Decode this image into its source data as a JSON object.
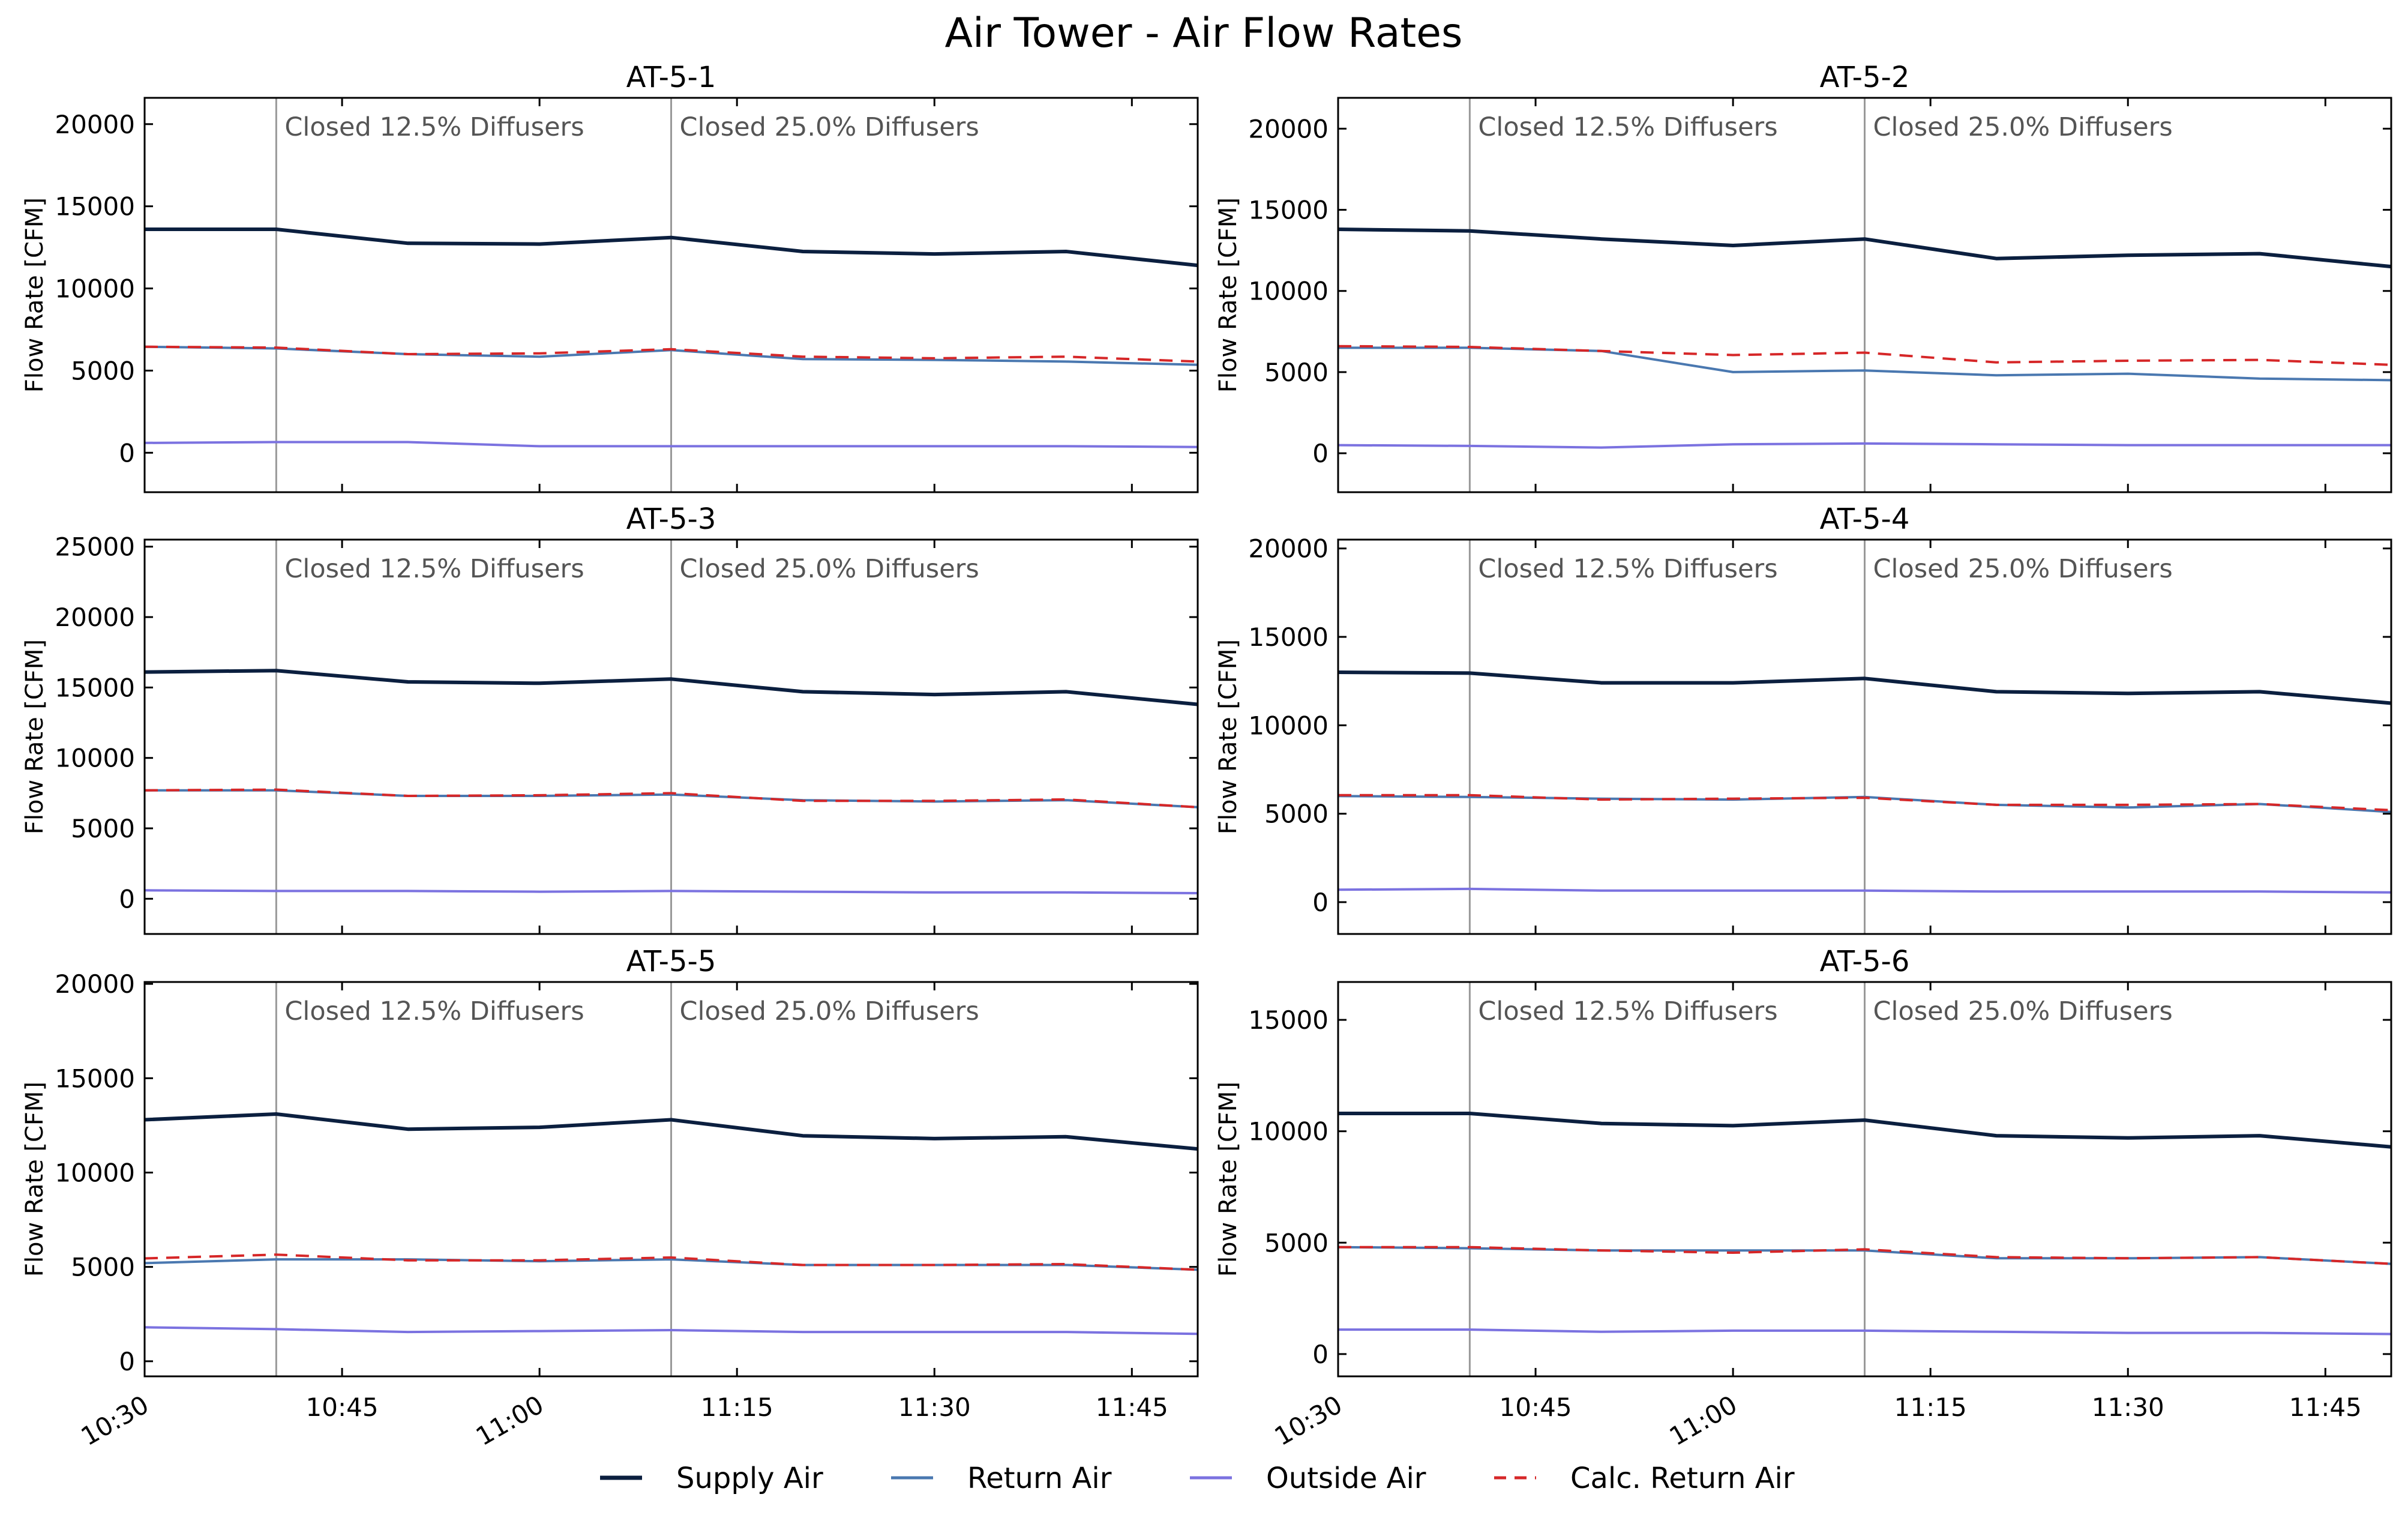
{
  "figure": {
    "title": "Air Tower - Air Flow Rates"
  },
  "colors": {
    "supply": "#0b1f3f",
    "return": "#4a78b0",
    "outside": "#7b72e0",
    "calc_return": "#d62728",
    "event_line": "#999999",
    "event_text": "#555555"
  },
  "legend": {
    "placement": "bottom-center",
    "items": [
      {
        "key": "supply",
        "label": "Supply Air",
        "dash": false
      },
      {
        "key": "return",
        "label": "Return Air",
        "dash": false
      },
      {
        "key": "outside",
        "label": "Outside Air",
        "dash": false
      },
      {
        "key": "calc_return",
        "label": "Calc. Return Air",
        "dash": true
      }
    ]
  },
  "chart_data": [
    {
      "type": "line",
      "title": "AT-5-1",
      "ylabel": "Flow Rate [CFM]",
      "xlabel": "",
      "x": [
        "10:30",
        "10:40",
        "10:50",
        "11:00",
        "11:10",
        "11:20",
        "11:30",
        "11:40",
        "11:50"
      ],
      "xlim": [
        "10:30",
        "11:50"
      ],
      "ylim": [
        -2400,
        21600
      ],
      "yticks": [
        0,
        5000,
        10000,
        15000,
        20000
      ],
      "grid": false,
      "events": [
        {
          "x": "10:40",
          "label": "Closed 12.5% Diffusers"
        },
        {
          "x": "11:10",
          "label": "Closed 25.0% Diffusers"
        }
      ],
      "series": [
        {
          "name": "Supply Air",
          "key": "supply",
          "values": [
            13600,
            13600,
            12750,
            12700,
            13100,
            12250,
            12100,
            12250,
            11400
          ]
        },
        {
          "name": "Return Air",
          "key": "return",
          "values": [
            6450,
            6350,
            6000,
            5850,
            6250,
            5700,
            5650,
            5550,
            5350
          ]
        },
        {
          "name": "Outside Air",
          "key": "outside",
          "values": [
            600,
            650,
            650,
            400,
            400,
            400,
            400,
            400,
            350
          ]
        },
        {
          "name": "Calc. Return Air",
          "key": "calc_return",
          "values": [
            6450,
            6400,
            6000,
            6050,
            6300,
            5850,
            5750,
            5850,
            5550
          ]
        }
      ]
    },
    {
      "type": "line",
      "title": "AT-5-2",
      "ylabel": "Flow Rate [CFM]",
      "xlabel": "",
      "x": [
        "10:30",
        "10:40",
        "10:50",
        "11:00",
        "11:10",
        "11:20",
        "11:30",
        "11:40",
        "11:50"
      ],
      "xlim": [
        "10:30",
        "11:50"
      ],
      "ylim": [
        -2400,
        21900
      ],
      "yticks": [
        0,
        5000,
        10000,
        15000,
        20000
      ],
      "grid": false,
      "events": [
        {
          "x": "10:40",
          "label": "Closed 12.5% Diffusers"
        },
        {
          "x": "11:10",
          "label": "Closed 25.0% Diffusers"
        }
      ],
      "series": [
        {
          "name": "Supply Air",
          "key": "supply",
          "values": [
            13800,
            13700,
            13200,
            12800,
            13200,
            12000,
            12200,
            12300,
            11500
          ]
        },
        {
          "name": "Return Air",
          "key": "return",
          "values": [
            6500,
            6500,
            6300,
            5000,
            5100,
            4800,
            4900,
            4600,
            4500
          ]
        },
        {
          "name": "Outside Air",
          "key": "outside",
          "values": [
            500,
            450,
            350,
            550,
            600,
            550,
            500,
            500,
            500
          ]
        },
        {
          "name": "Calc. Return Air",
          "key": "calc_return",
          "values": [
            6600,
            6550,
            6300,
            6050,
            6200,
            5600,
            5700,
            5750,
            5450
          ]
        }
      ]
    },
    {
      "type": "line",
      "title": "AT-5-3",
      "ylabel": "Flow Rate [CFM]",
      "xlabel": "",
      "x": [
        "10:30",
        "10:40",
        "10:50",
        "11:00",
        "11:10",
        "11:20",
        "11:30",
        "11:40",
        "11:50"
      ],
      "xlim": [
        "10:30",
        "11:50"
      ],
      "ylim": [
        -2500,
        25500
      ],
      "yticks": [
        0,
        5000,
        10000,
        15000,
        20000,
        25000
      ],
      "grid": false,
      "events": [
        {
          "x": "10:40",
          "label": "Closed 12.5% Diffusers"
        },
        {
          "x": "11:10",
          "label": "Closed 25.0% Diffusers"
        }
      ],
      "series": [
        {
          "name": "Supply Air",
          "key": "supply",
          "values": [
            16100,
            16200,
            15400,
            15300,
            15600,
            14700,
            14500,
            14700,
            13800
          ]
        },
        {
          "name": "Return Air",
          "key": "return",
          "values": [
            7700,
            7700,
            7300,
            7300,
            7400,
            7000,
            6900,
            7000,
            6500
          ]
        },
        {
          "name": "Outside Air",
          "key": "outside",
          "values": [
            600,
            550,
            550,
            500,
            550,
            500,
            450,
            450,
            400
          ]
        },
        {
          "name": "Calc. Return Air",
          "key": "calc_return",
          "values": [
            7700,
            7750,
            7300,
            7350,
            7500,
            6950,
            6950,
            7050,
            6500
          ]
        }
      ]
    },
    {
      "type": "line",
      "title": "AT-5-4",
      "ylabel": "Flow Rate [CFM]",
      "xlabel": "",
      "x": [
        "10:30",
        "10:40",
        "10:50",
        "11:00",
        "11:10",
        "11:20",
        "11:30",
        "11:40",
        "11:50"
      ],
      "xlim": [
        "10:30",
        "11:50"
      ],
      "ylim": [
        -1800,
        20500
      ],
      "yticks": [
        0,
        5000,
        10000,
        15000,
        20000
      ],
      "grid": false,
      "events": [
        {
          "x": "10:40",
          "label": "Closed 12.5% Diffusers"
        },
        {
          "x": "11:10",
          "label": "Closed 25.0% Diffusers"
        }
      ],
      "series": [
        {
          "name": "Supply Air",
          "key": "supply",
          "values": [
            13000,
            12950,
            12400,
            12400,
            12650,
            11900,
            11800,
            11900,
            11250
          ]
        },
        {
          "name": "Return Air",
          "key": "return",
          "values": [
            6000,
            5950,
            5850,
            5800,
            5950,
            5500,
            5350,
            5550,
            5100
          ]
        },
        {
          "name": "Outside Air",
          "key": "outside",
          "values": [
            700,
            750,
            650,
            650,
            650,
            600,
            600,
            600,
            550
          ]
        },
        {
          "name": "Calc. Return Air",
          "key": "calc_return",
          "values": [
            6050,
            6050,
            5800,
            5850,
            5900,
            5500,
            5500,
            5550,
            5200
          ]
        }
      ]
    },
    {
      "type": "line",
      "title": "AT-5-5",
      "ylabel": "Flow Rate [CFM]",
      "xlabel": "",
      "x": [
        "10:30",
        "10:40",
        "10:50",
        "11:00",
        "11:10",
        "11:20",
        "11:30",
        "11:40",
        "11:50"
      ],
      "xlim": [
        "10:30",
        "11:50"
      ],
      "ylim": [
        -800,
        20100
      ],
      "yticks": [
        0,
        5000,
        10000,
        15000,
        20000
      ],
      "grid": false,
      "events": [
        {
          "x": "10:40",
          "label": "Closed 12.5% Diffusers"
        },
        {
          "x": "11:10",
          "label": "Closed 25.0% Diffusers"
        }
      ],
      "series": [
        {
          "name": "Supply Air",
          "key": "supply",
          "values": [
            12800,
            13100,
            12300,
            12400,
            12800,
            11950,
            11800,
            11900,
            11250
          ]
        },
        {
          "name": "Return Air",
          "key": "return",
          "values": [
            5200,
            5400,
            5400,
            5300,
            5400,
            5100,
            5100,
            5100,
            4850
          ]
        },
        {
          "name": "Outside Air",
          "key": "outside",
          "values": [
            1800,
            1700,
            1550,
            1600,
            1650,
            1550,
            1550,
            1550,
            1450
          ]
        },
        {
          "name": "Calc. Return Air",
          "key": "calc_return",
          "values": [
            5450,
            5650,
            5350,
            5350,
            5500,
            5100,
            5100,
            5150,
            4850
          ]
        }
      ]
    },
    {
      "type": "line",
      "title": "AT-5-6",
      "ylabel": "Flow Rate [CFM]",
      "xlabel": "",
      "x": [
        "10:30",
        "10:40",
        "10:50",
        "11:00",
        "11:10",
        "11:20",
        "11:30",
        "11:40",
        "11:50"
      ],
      "xlim": [
        "10:30",
        "11:50"
      ],
      "ylim": [
        -1000,
        16700
      ],
      "yticks": [
        0,
        5000,
        10000,
        15000
      ],
      "grid": false,
      "events": [
        {
          "x": "10:40",
          "label": "Closed 12.5% Diffusers"
        },
        {
          "x": "11:10",
          "label": "Closed 25.0% Diffusers"
        }
      ],
      "series": [
        {
          "name": "Supply Air",
          "key": "supply",
          "values": [
            10800,
            10800,
            10350,
            10250,
            10500,
            9800,
            9700,
            9800,
            9300
          ]
        },
        {
          "name": "Return Air",
          "key": "return",
          "values": [
            4800,
            4750,
            4650,
            4650,
            4650,
            4300,
            4300,
            4350,
            4050
          ]
        },
        {
          "name": "Outside Air",
          "key": "outside",
          "values": [
            1100,
            1100,
            1000,
            1050,
            1050,
            1000,
            950,
            950,
            900
          ]
        },
        {
          "name": "Calc. Return Air",
          "key": "calc_return",
          "values": [
            4800,
            4800,
            4650,
            4550,
            4700,
            4350,
            4300,
            4350,
            4050
          ]
        }
      ]
    }
  ],
  "x_axis": {
    "ticks": [
      {
        "x": "10:30",
        "label": "10:30",
        "rotated": true
      },
      {
        "x": "10:45",
        "label": "10:45",
        "rotated": false
      },
      {
        "x": "11:00",
        "label": "11:00",
        "rotated": true
      },
      {
        "x": "11:15",
        "label": "11:15",
        "rotated": false
      },
      {
        "x": "11:30",
        "label": "11:30",
        "rotated": false
      },
      {
        "x": "11:45",
        "label": "11:45",
        "rotated": false
      }
    ]
  }
}
